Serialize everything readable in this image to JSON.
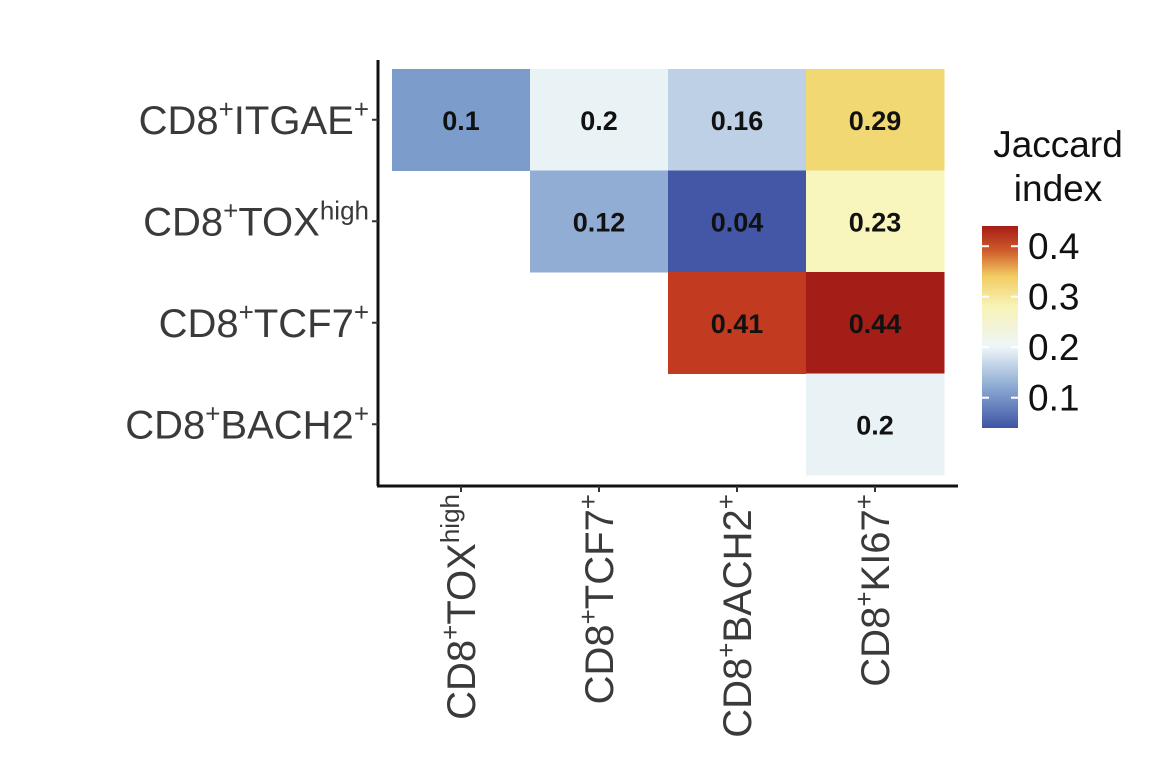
{
  "chart_data": {
    "type": "heatmap",
    "rows": [
      {
        "main": "CD8",
        "sup": "+",
        "mid": "ITGAE",
        "sup2": "+"
      },
      {
        "main": "CD8",
        "sup": "+",
        "mid": "TOX",
        "sup2": "high"
      },
      {
        "main": "CD8",
        "sup": "+",
        "mid": "TCF7",
        "sup2": "+"
      },
      {
        "main": "CD8",
        "sup": "+",
        "mid": "BACH2",
        "sup2": "+"
      }
    ],
    "columns": [
      {
        "main": "CD8",
        "sup": "+",
        "mid": "TOX",
        "sup2": "high"
      },
      {
        "main": "CD8",
        "sup": "+",
        "mid": "TCF7",
        "sup2": "+"
      },
      {
        "main": "CD8",
        "sup": "+",
        "mid": "BACH2",
        "sup2": "+"
      },
      {
        "main": "CD8",
        "sup": "+",
        "mid": "KI67",
        "sup2": "+"
      }
    ],
    "values": [
      [
        0.1,
        0.2,
        0.16,
        0.29
      ],
      [
        null,
        0.12,
        0.04,
        0.23
      ],
      [
        null,
        null,
        0.41,
        0.44
      ],
      [
        null,
        null,
        null,
        0.2
      ]
    ],
    "value_labels": [
      [
        "0.1",
        "0.2",
        "0.16",
        "0.29"
      ],
      [
        "",
        "0.12",
        "0.04",
        "0.23"
      ],
      [
        "",
        "",
        "0.41",
        "0.44"
      ],
      [
        "",
        "",
        "",
        "0.2"
      ]
    ],
    "legend": {
      "title_line1": "Jaccard",
      "title_line2": "index",
      "ticks": [
        0.1,
        0.2,
        0.3,
        0.4
      ],
      "tick_labels": [
        "0.1",
        "0.2",
        "0.3",
        "0.4"
      ],
      "range": [
        0.04,
        0.44
      ]
    },
    "colorscale": [
      "#4357a6",
      "#7c9ccc",
      "#e9f3f6",
      "#f8f5bd",
      "#f1d873",
      "#c23b20",
      "#a31e16"
    ],
    "colorscale_stops": [
      0.04,
      0.1,
      0.2,
      0.23,
      0.29,
      0.41,
      0.44
    ]
  }
}
